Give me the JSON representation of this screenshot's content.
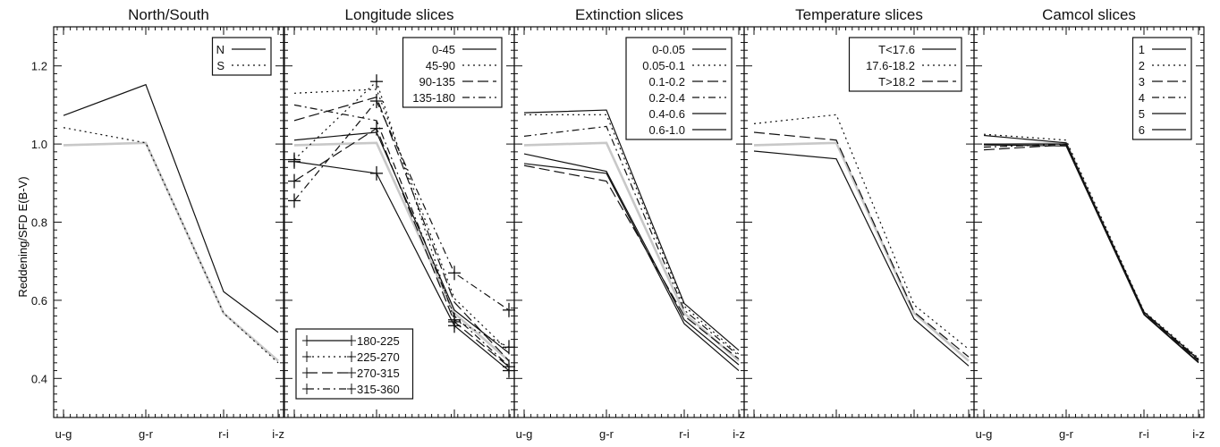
{
  "ylabel": "Reddening/SFD E(B-V)",
  "x_categories": [
    "u-g",
    "g-r",
    "r-i",
    "i-z"
  ],
  "y_ticks": [
    "0.4",
    "0.6",
    "0.8",
    "1.0",
    "1.2"
  ],
  "colors": {
    "line": "#111111",
    "reference": "#c8c8c8",
    "background": "#ffffff"
  },
  "chart_data": [
    {
      "type": "line",
      "title": "North/South",
      "xlabel": "",
      "ylabel": "Reddening/SFD E(B-V)",
      "categories": [
        "u-g",
        "g-r",
        "r-i",
        "i-z"
      ],
      "ylim": [
        0.3,
        1.3
      ],
      "legend_position": "top-right",
      "reference": [
        0.997,
        1.003,
        0.567,
        0.445
      ],
      "series": [
        {
          "name": "N",
          "dash": "solid",
          "values": [
            1.073,
            1.152,
            0.622,
            0.518
          ]
        },
        {
          "name": "S",
          "dash": "dotted",
          "values": [
            1.042,
            1.003,
            0.567,
            0.44
          ]
        }
      ]
    },
    {
      "type": "line",
      "title": "Longitude slices",
      "xlabel": "",
      "categories": [
        "u-g",
        "g-r",
        "r-i",
        "i-z"
      ],
      "ylim": [
        0.3,
        1.3
      ],
      "legend_position": "top-right",
      "legend2_position": "bottom-left",
      "reference": [
        0.997,
        1.003,
        0.567,
        0.445
      ],
      "series": [
        {
          "name": "0-45",
          "dash": "solid",
          "marker": false,
          "values": [
            1.01,
            1.03,
            0.575,
            0.465
          ]
        },
        {
          "name": "45-90",
          "dash": "dotted",
          "marker": false,
          "values": [
            1.13,
            1.14,
            0.605,
            0.47
          ]
        },
        {
          "name": "90-135",
          "dash": "longdash",
          "marker": false,
          "values": [
            1.06,
            1.12,
            0.595,
            0.445
          ]
        },
        {
          "name": "135-180",
          "dash": "dashdot",
          "marker": false,
          "values": [
            1.1,
            1.06,
            0.56,
            0.432
          ]
        },
        {
          "name": "180-225",
          "dash": "solid",
          "marker": true,
          "values": [
            0.955,
            0.925,
            0.535,
            0.42
          ]
        },
        {
          "name": "225-270",
          "dash": "dotted",
          "marker": true,
          "values": [
            0.96,
            1.16,
            0.55,
            0.48
          ]
        },
        {
          "name": "270-315",
          "dash": "longdash",
          "marker": true,
          "values": [
            0.905,
            1.04,
            0.545,
            0.43
          ]
        },
        {
          "name": "315-360",
          "dash": "dashdot",
          "marker": true,
          "values": [
            0.855,
            1.11,
            0.67,
            0.575
          ]
        }
      ]
    },
    {
      "type": "line",
      "title": "Extinction slices",
      "xlabel": "",
      "categories": [
        "u-g",
        "g-r",
        "r-i",
        "i-z"
      ],
      "ylim": [
        0.3,
        1.3
      ],
      "legend_position": "top-right",
      "reference": [
        0.997,
        1.003,
        0.567,
        0.445
      ],
      "series": [
        {
          "name": "0-0.05",
          "dash": "solid",
          "values": [
            1.08,
            1.087,
            0.592,
            0.472
          ]
        },
        {
          "name": "0.05-0.1",
          "dash": "dotted",
          "values": [
            1.075,
            1.075,
            0.585,
            0.462
          ]
        },
        {
          "name": "0.1-0.2",
          "dash": "longdash",
          "values": [
            0.945,
            0.905,
            0.56,
            0.45
          ]
        },
        {
          "name": "0.2-0.4",
          "dash": "dashdot",
          "values": [
            1.02,
            1.045,
            0.575,
            0.458
          ]
        },
        {
          "name": "0.4-0.6",
          "dash": "solid",
          "values": [
            0.975,
            0.93,
            0.55,
            0.435
          ]
        },
        {
          "name": "0.6-1.0",
          "dash": "solid",
          "values": [
            0.95,
            0.925,
            0.54,
            0.42
          ]
        }
      ]
    },
    {
      "type": "line",
      "title": "Temperature slices",
      "xlabel": "",
      "categories": [
        "u-g",
        "g-r",
        "r-i",
        "i-z"
      ],
      "ylim": [
        0.3,
        1.3
      ],
      "legend_position": "top-right",
      "reference": [
        0.997,
        1.003,
        0.567,
        0.445
      ],
      "series": [
        {
          "name": "T<17.6",
          "dash": "solid",
          "values": [
            0.982,
            0.962,
            0.552,
            0.432
          ]
        },
        {
          "name": "17.6-18.2",
          "dash": "dotted",
          "values": [
            1.052,
            1.075,
            0.588,
            0.475
          ]
        },
        {
          "name": "T>18.2",
          "dash": "longdash",
          "values": [
            1.03,
            1.01,
            0.57,
            0.455
          ]
        }
      ]
    },
    {
      "type": "line",
      "title": "Camcol slices",
      "xlabel": "",
      "categories": [
        "u-g",
        "g-r",
        "r-i",
        "i-z"
      ],
      "ylim": [
        0.3,
        1.3
      ],
      "legend_position": "top-right",
      "reference": [
        0.997,
        1.003,
        0.567,
        0.445
      ],
      "series": [
        {
          "name": "1",
          "dash": "solid",
          "values": [
            1.0,
            1.0,
            0.57,
            0.448
          ]
        },
        {
          "name": "2",
          "dash": "dotted",
          "values": [
            1.025,
            1.01,
            0.572,
            0.452
          ]
        },
        {
          "name": "3",
          "dash": "longdash",
          "values": [
            0.985,
            0.998,
            0.566,
            0.446
          ]
        },
        {
          "name": "4",
          "dash": "dashdot",
          "values": [
            0.992,
            1.0,
            0.568,
            0.45
          ]
        },
        {
          "name": "5",
          "dash": "solid",
          "values": [
            1.022,
            1.003,
            0.565,
            0.442
          ]
        },
        {
          "name": "6",
          "dash": "solid",
          "values": [
            0.998,
            0.995,
            0.563,
            0.44
          ]
        }
      ]
    }
  ]
}
